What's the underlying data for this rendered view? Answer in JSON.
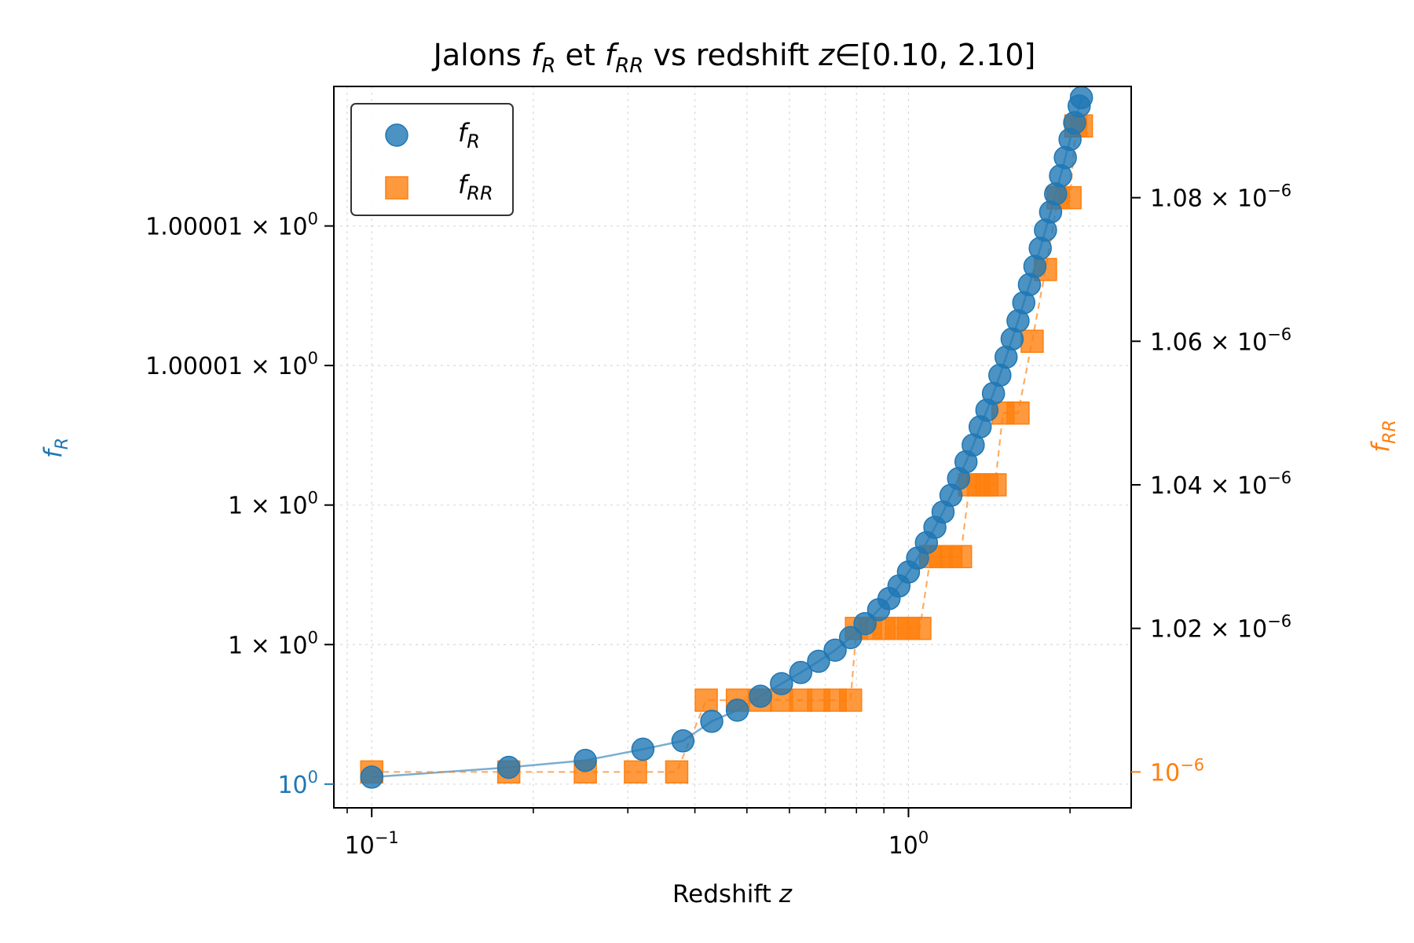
{
  "chart_data": {
    "type": "scatter",
    "title_parts": {
      "prefix": "Jalons ",
      "f": "f",
      "sub_r": "R",
      "mid": " et ",
      "sub_rr": "RR",
      "suffix_pre": " vs redshift ",
      "z": "z",
      "suffix": "∈[0.10, 2.10]"
    },
    "xlabel_text": "Redshift ",
    "xlabel_var": "z",
    "ylabel_left": {
      "f": "f",
      "sub": "R"
    },
    "ylabel_right": {
      "f": "f",
      "sub": "RR"
    },
    "x_scale": "log",
    "xlim": [
      0.085,
      2.6
    ],
    "x_ticks": [
      {
        "value": 0.1,
        "base": "10",
        "exp": "−1"
      },
      {
        "value": 1.0,
        "base": "10",
        "exp": "0"
      }
    ],
    "left_ylim": [
      -0.17,
      5.0
    ],
    "left_ticks": [
      {
        "value": 0,
        "mant": "",
        "base": "10",
        "exp": "0"
      },
      {
        "value": 1,
        "mant": "1 × ",
        "base": "10",
        "exp": "0"
      },
      {
        "value": 2,
        "mant": "1 × ",
        "base": "10",
        "exp": "0"
      },
      {
        "value": 3,
        "mant": "1.00001 × ",
        "base": "10",
        "exp": "0"
      },
      {
        "value": 4,
        "mant": "1.00001 × ",
        "base": "10",
        "exp": "0"
      }
    ],
    "right_ylim": [
      0.995,
      1.0955
    ],
    "right_ticks": [
      {
        "value": 1.0,
        "mant": "",
        "base": "10",
        "exp": "−6"
      },
      {
        "value": 1.02,
        "mant": "1.02 × ",
        "base": "10",
        "exp": "−6"
      },
      {
        "value": 1.04,
        "mant": "1.04 × ",
        "base": "10",
        "exp": "−6"
      },
      {
        "value": 1.06,
        "mant": "1.06 × ",
        "base": "10",
        "exp": "−6"
      },
      {
        "value": 1.08,
        "mant": "1.08 × ",
        "base": "10",
        "exp": "−6"
      }
    ],
    "grid": true,
    "legend_position": "top-left",
    "colors": {
      "fR": "#1f77b4",
      "fRR": "#ff7f0e",
      "axis": "#000000",
      "grid": "#d9d9d9"
    },
    "series": [
      {
        "name_f": "f",
        "name_sub": "R",
        "marker": "circle",
        "axis": "left",
        "x": [
          0.1,
          0.18,
          0.25,
          0.32,
          0.38,
          0.43,
          0.48,
          0.53,
          0.58,
          0.63,
          0.68,
          0.73,
          0.78,
          0.83,
          0.88,
          0.92,
          0.96,
          1.0,
          1.04,
          1.08,
          1.12,
          1.16,
          1.2,
          1.24,
          1.28,
          1.32,
          1.36,
          1.4,
          1.44,
          1.48,
          1.52,
          1.56,
          1.6,
          1.64,
          1.68,
          1.72,
          1.76,
          1.8,
          1.84,
          1.88,
          1.92,
          1.96,
          2.0,
          2.04,
          2.08,
          2.1
        ],
        "y": [
          0.05,
          0.12,
          0.17,
          0.25,
          0.31,
          0.45,
          0.53,
          0.63,
          0.72,
          0.8,
          0.88,
          0.96,
          1.05,
          1.15,
          1.25,
          1.33,
          1.42,
          1.52,
          1.62,
          1.73,
          1.84,
          1.95,
          2.07,
          2.19,
          2.31,
          2.43,
          2.56,
          2.68,
          2.8,
          2.93,
          3.06,
          3.19,
          3.32,
          3.45,
          3.58,
          3.71,
          3.84,
          3.97,
          4.1,
          4.23,
          4.36,
          4.49,
          4.62,
          4.74,
          4.86,
          4.92
        ]
      },
      {
        "name_f": "f",
        "name_sub": "RR",
        "marker": "square",
        "axis": "right",
        "x": [
          0.1,
          0.18,
          0.25,
          0.31,
          0.37,
          0.42,
          0.48,
          0.53,
          0.58,
          0.63,
          0.68,
          0.73,
          0.78,
          0.8,
          0.85,
          0.9,
          0.95,
          1.0,
          1.05,
          1.1,
          1.15,
          1.2,
          1.25,
          1.3,
          1.35,
          1.4,
          1.45,
          1.5,
          1.6,
          1.7,
          1.8,
          1.9,
          2.0,
          2.05,
          2.1
        ],
        "y": [
          1.0,
          1.0,
          1.0,
          1.0,
          1.0,
          1.01,
          1.01,
          1.01,
          1.01,
          1.01,
          1.01,
          1.01,
          1.01,
          1.02,
          1.02,
          1.02,
          1.02,
          1.02,
          1.02,
          1.03,
          1.03,
          1.03,
          1.03,
          1.04,
          1.04,
          1.04,
          1.04,
          1.05,
          1.05,
          1.06,
          1.07,
          1.08,
          1.08,
          1.09,
          1.09
        ]
      }
    ]
  }
}
